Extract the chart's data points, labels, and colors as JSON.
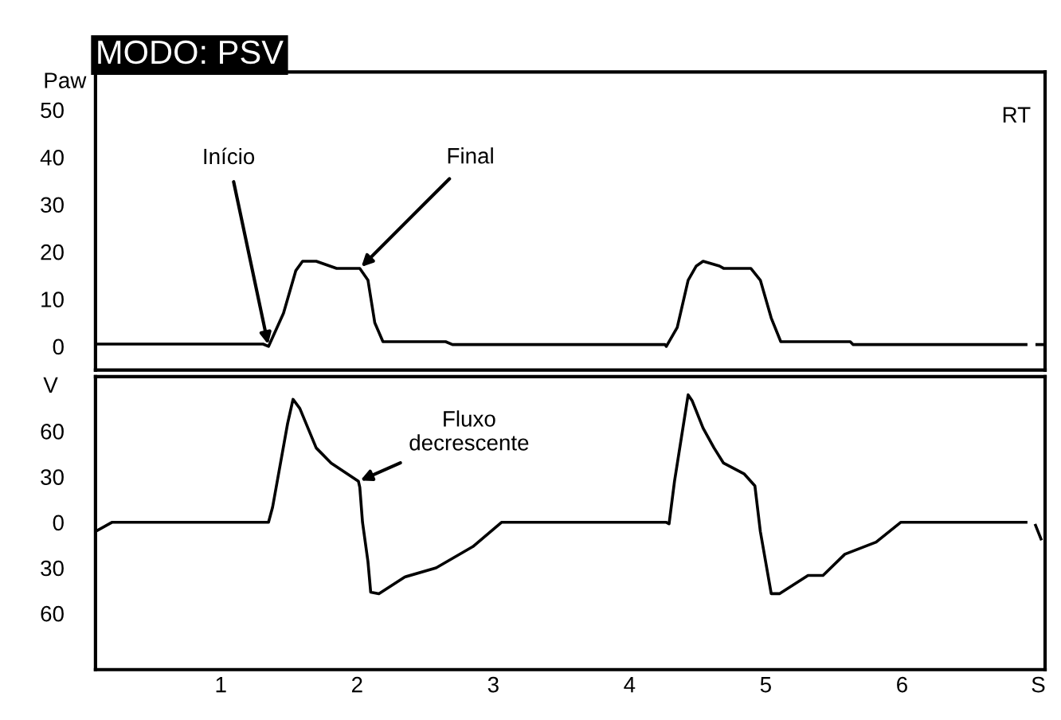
{
  "chart_data": [
    {
      "type": "line",
      "title": "MODO: PSV",
      "ylabel": "Paw",
      "tick_labels": "y",
      "grid": false,
      "xlim": [
        0.08,
        7.05
      ],
      "ylim": [
        -5,
        58
      ],
      "yticks": [
        0,
        10,
        20,
        30,
        40,
        50
      ],
      "annotations": [
        {
          "text": "Início",
          "x": 1.35,
          "y": 0
        },
        {
          "text": "Final",
          "x": 2.02,
          "y": 16.5
        },
        "RT"
      ],
      "series": [
        {
          "color": "#000000",
          "x": [
            0.08,
            1.31,
            1.35,
            1.46,
            1.55,
            1.6,
            1.7,
            1.85,
            2.02,
            2.08,
            2.13,
            2.19,
            2.65,
            2.7,
            4.26,
            4.27,
            4.35,
            4.43,
            4.49,
            4.54,
            4.66,
            4.69,
            4.89,
            4.96,
            5.04,
            5.11,
            5.62,
            5.64,
            6.91,
            6.95,
            6.99,
            7.05
          ],
          "values": [
            0.5,
            0.5,
            0,
            7,
            16,
            18,
            18,
            16.5,
            16.5,
            14,
            5,
            1,
            1,
            0.4,
            0.4,
            0,
            4,
            14,
            17,
            18,
            17,
            16.5,
            16.5,
            14,
            6,
            1,
            1,
            0.4,
            0.4,
            null,
            0.4,
            0.4
          ]
        }
      ]
    },
    {
      "type": "line",
      "ylabel": "V",
      "grid": false,
      "xlim": [
        0.08,
        7.05
      ],
      "ylim": [
        -97,
        96
      ],
      "xticks": [
        1,
        2,
        3,
        4,
        5,
        6,
        {
          "value": 7,
          "label": "S"
        }
      ],
      "yticks": [
        {
          "value": -60,
          "label": "60"
        },
        {
          "value": -30,
          "label": "30"
        },
        0,
        30,
        60
      ],
      "annotations": [
        {
          "text": "Fluxo\ndecrescente",
          "x": 2.01,
          "y": 27
        }
      ],
      "series": [
        {
          "color": "#000000",
          "x": [
            0.08,
            0.2,
            1.35,
            1.38,
            1.49,
            1.53,
            1.58,
            1.7,
            1.81,
            2.01,
            2.02,
            2.04,
            2.08,
            2.1,
            2.16,
            2.35,
            2.58,
            2.85,
            3.06,
            4.27,
            4.29,
            4.33,
            4.43,
            4.46,
            4.54,
            4.62,
            4.69,
            4.84,
            4.92,
            4.96,
            5.04,
            5.1,
            5.31,
            5.42,
            5.58,
            5.81,
            5.99,
            6.91,
            6.96,
            6.98,
            7.02
          ],
          "values": [
            -6,
            0,
            0,
            10,
            65,
            81,
            75,
            49,
            39,
            27,
            23,
            0,
            -26,
            -46,
            -47,
            -36,
            -30,
            -16,
            0,
            0,
            -1,
            27,
            84,
            80,
            62,
            49,
            39,
            32,
            24,
            -6,
            -47,
            -47,
            -35,
            -35,
            -21,
            -13,
            0,
            0,
            null,
            -2,
            -11
          ]
        }
      ]
    }
  ]
}
